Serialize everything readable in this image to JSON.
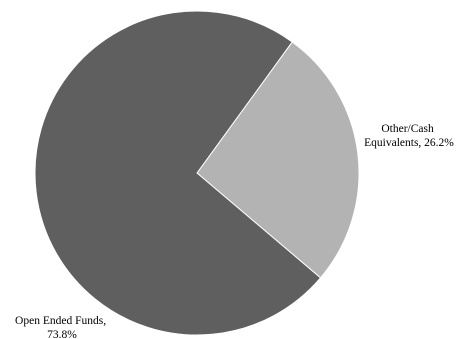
{
  "chart_data": {
    "type": "pie",
    "title": "",
    "slices": [
      {
        "name": "Other/Cash Equivalents",
        "value": 26.2,
        "label_lines": [
          "Other/Cash",
          "Equivalents, 26.2%"
        ],
        "color": "#b3b3b3"
      },
      {
        "name": "Open Ended Funds",
        "value": 73.8,
        "label_lines": [
          "Open Ended Funds,",
          "73.8%"
        ],
        "color": "#5f5f5f"
      }
    ]
  }
}
